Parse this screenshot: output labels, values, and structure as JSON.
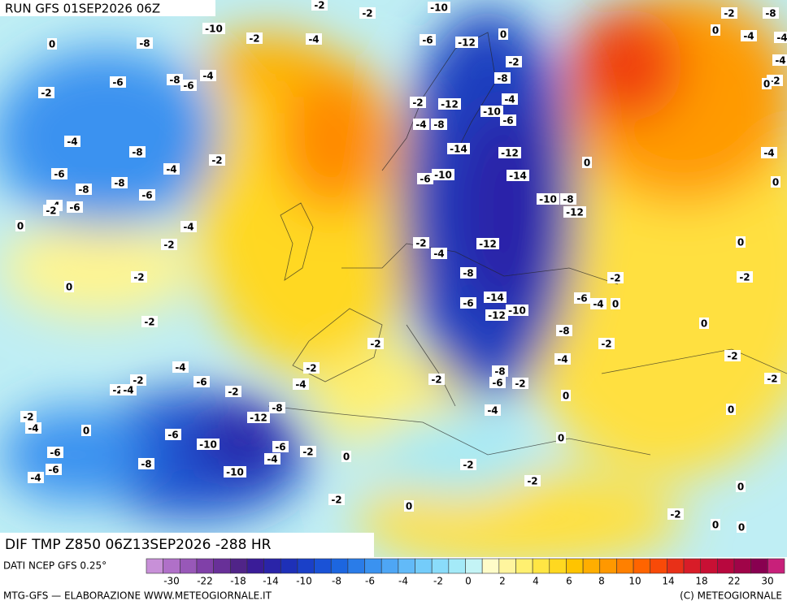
{
  "header": {
    "run": "RUN GFS 01SEP2026 06Z",
    "field": "DIF TMP Z850 06Z13SEP2026 -288 HR"
  },
  "footer": {
    "source": "DATI NCEP GFS 0.25°",
    "credits": "MTG-GFS — ELABORAZIONE WWW.METEOGIORNALE.IT",
    "copyright": "(C) METEOGIORNALE"
  },
  "colorbar": {
    "colors": [
      "#c890d8",
      "#b070c8",
      "#9858b8",
      "#8040a8",
      "#683098",
      "#502488",
      "#3a1c98",
      "#2a24a8",
      "#1e30b8",
      "#1a40c8",
      "#1a52d6",
      "#1c66e0",
      "#2a7ce8",
      "#3a92f0",
      "#4ea6f5",
      "#62baf8",
      "#74ccfa",
      "#8adcfa",
      "#a4eaf8",
      "#c4f4f6",
      "#fffcc8",
      "#fff59e",
      "#fff070",
      "#ffe644",
      "#ffd820",
      "#ffc400",
      "#ffae00",
      "#ff9800",
      "#ff8000",
      "#ff6400",
      "#f84a08",
      "#e83018",
      "#d81c28",
      "#c81034",
      "#b8083e",
      "#a00448",
      "#880050",
      "#c8207a"
    ],
    "labels": [
      -30,
      -22,
      -18,
      -14,
      -10,
      -8,
      -6,
      -4,
      -2,
      0,
      2,
      4,
      6,
      8,
      10,
      14,
      18,
      22,
      30
    ]
  },
  "contour_labels": [
    -2,
    -2,
    -10,
    -2,
    -8,
    -10,
    -2,
    -4,
    -6,
    -12,
    0,
    0,
    -4,
    -4,
    0,
    -8,
    -2,
    -4,
    -6,
    -8,
    -6,
    -4,
    -8,
    -2,
    0,
    -2,
    -2,
    -12,
    -4,
    -10,
    -6,
    -4,
    -8,
    -4,
    -8,
    -14,
    -12,
    -4,
    -2,
    -4,
    -6,
    0,
    0,
    -6,
    -10,
    -14,
    -8,
    -8,
    -6,
    -10,
    -8,
    -4,
    -2,
    -6,
    -12,
    0,
    -4,
    -2,
    -2,
    -12,
    -4,
    0,
    -2,
    -8,
    -2,
    -2,
    0,
    -14,
    -6,
    -6,
    -4,
    0,
    -10,
    -12,
    -2,
    0,
    -8,
    -2,
    -2,
    -4,
    -2,
    -4,
    -8,
    -2,
    -2,
    -2,
    -4,
    -6,
    -4,
    -2,
    -6,
    -2,
    -2,
    -2,
    0,
    -8,
    -12,
    0,
    -2,
    -4,
    -4,
    0,
    -6,
    0,
    -10,
    -6,
    -2,
    -6,
    -4,
    0,
    -6,
    -8,
    -10,
    -4,
    -2,
    -2,
    0,
    -2,
    0,
    -2,
    0,
    0
  ]
}
